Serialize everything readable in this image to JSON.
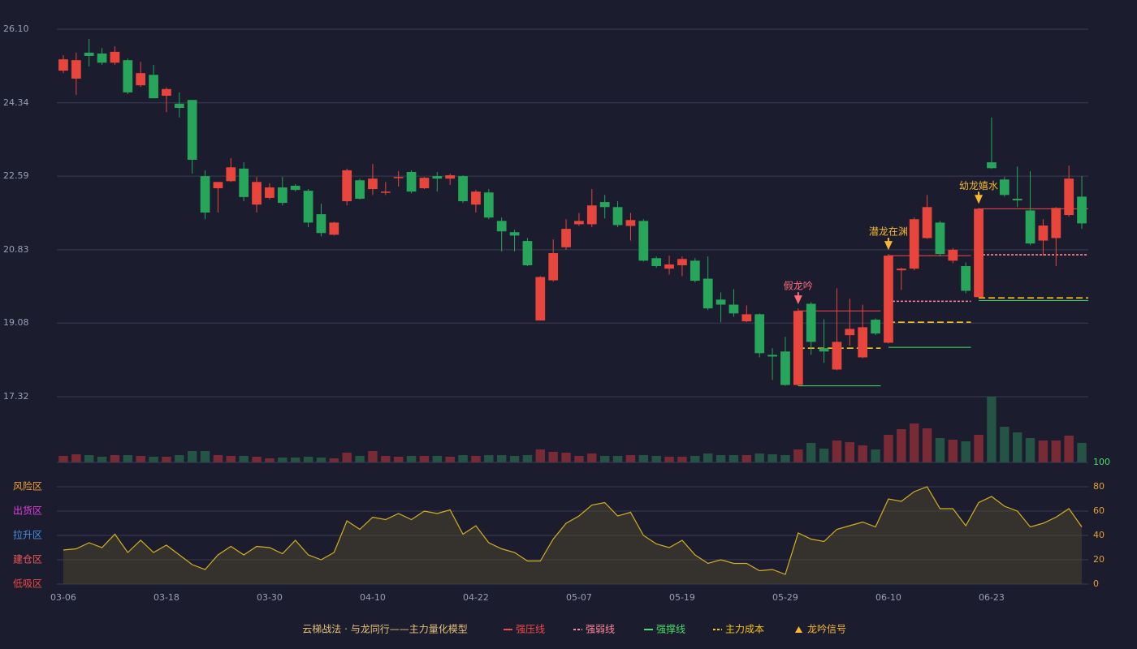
{
  "chart_data": {
    "type": "candlestick",
    "categories": [
      "03-06",
      null,
      null,
      null,
      null,
      null,
      null,
      null,
      "03-18",
      null,
      null,
      null,
      null,
      null,
      null,
      null,
      "03-30",
      null,
      null,
      null,
      null,
      null,
      null,
      null,
      "04-10",
      null,
      null,
      null,
      null,
      null,
      null,
      null,
      "04-22",
      null,
      null,
      null,
      null,
      null,
      null,
      null,
      "05-07",
      null,
      null,
      null,
      null,
      null,
      null,
      null,
      "05-19",
      null,
      null,
      null,
      null,
      null,
      null,
      null,
      "05-29",
      null,
      null,
      null,
      null,
      null,
      null,
      null,
      "06-10",
      null,
      null,
      null,
      null,
      null,
      null,
      null,
      "06-23",
      null,
      null,
      null,
      null,
      null,
      null,
      null
    ],
    "open": [
      25.11,
      24.92,
      25.54,
      25.52,
      25.3,
      25.36,
      24.76,
      25.01,
      24.51,
      24.32,
      24.41,
      22.59,
      22.3,
      22.47,
      22.77,
      21.91,
      22.07,
      22.32,
      22.36,
      22.24,
      21.68,
      21.19,
      21.99,
      22.49,
      22.28,
      22.2,
      22.55,
      22.69,
      22.3,
      22.59,
      22.53,
      22.59,
      21.91,
      22.2,
      21.52,
      21.25,
      21.04,
      19.14,
      20.1,
      20.89,
      21.44,
      21.44,
      21.97,
      21.85,
      21.4,
      21.52,
      20.63,
      20.38,
      20.46,
      20.57,
      20.14,
      19.64,
      19.52,
      19.12,
      19.29,
      18.32,
      18.4,
      17.6,
      19.54,
      18.48,
      17.97,
      18.79,
      18.26,
      19.16,
      18.61,
      20.34,
      20.38,
      21.11,
      21.48,
      20.57,
      20.44,
      19.7,
      22.92,
      22.51,
      22.05,
      21.77,
      21.05,
      21.11,
      21.66,
      22.1
    ],
    "high": [
      25.48,
      25.54,
      25.87,
      25.65,
      25.69,
      25.4,
      25.32,
      25.25,
      24.71,
      24.59,
      24.41,
      22.73,
      22.45,
      23.02,
      22.92,
      22.57,
      22.42,
      22.57,
      22.4,
      22.28,
      21.93,
      21.5,
      22.77,
      22.53,
      22.88,
      22.45,
      22.71,
      22.73,
      22.57,
      22.69,
      22.65,
      22.61,
      22.26,
      22.28,
      21.6,
      21.31,
      21.11,
      20.2,
      21.08,
      21.56,
      21.71,
      22.28,
      22.14,
      21.99,
      21.71,
      21.56,
      20.67,
      20.69,
      20.67,
      20.63,
      20.67,
      19.81,
      19.89,
      19.5,
      19.31,
      18.48,
      18.75,
      19.43,
      19.58,
      19.17,
      19.91,
      19.66,
      19.52,
      19.19,
      20.73,
      20.4,
      21.6,
      22.14,
      21.52,
      20.87,
      20.53,
      21.83,
      23.99,
      22.57,
      22.82,
      22.71,
      21.56,
      21.85,
      22.84,
      22.59
    ],
    "low": [
      25.05,
      24.53,
      25.21,
      25.25,
      25.25,
      24.55,
      24.72,
      24.45,
      24.12,
      23.99,
      22.65,
      21.56,
      21.72,
      22.45,
      21.99,
      21.72,
      22.03,
      21.89,
      22.22,
      21.37,
      21.15,
      21.17,
      21.89,
      22.03,
      22.14,
      22.14,
      22.34,
      22.18,
      22.28,
      22.22,
      22.38,
      21.95,
      21.72,
      21.56,
      20.79,
      20.79,
      20.44,
      19.14,
      20.07,
      20.83,
      21.4,
      21.37,
      21.58,
      21.37,
      21.05,
      20.55,
      20.4,
      20.24,
      20.2,
      20.05,
      19.39,
      19.1,
      19.23,
      19.1,
      18.26,
      17.72,
      17.58,
      17.58,
      18.32,
      18.13,
      17.95,
      18.54,
      18.24,
      18.79,
      18.59,
      19.87,
      20.34,
      21.09,
      20.67,
      20.51,
      19.79,
      19.68,
      22.76,
      22.1,
      21.85,
      20.94,
      20.69,
      20.44,
      21.62,
      21.33
    ],
    "close": [
      25.38,
      25.36,
      25.46,
      25.3,
      25.56,
      24.59,
      25.05,
      24.45,
      24.67,
      24.22,
      22.98,
      21.72,
      22.45,
      22.8,
      22.09,
      22.45,
      22.32,
      21.95,
      22.26,
      21.48,
      21.23,
      21.48,
      22.73,
      22.05,
      22.53,
      22.22,
      22.57,
      22.22,
      22.55,
      22.53,
      22.61,
      21.99,
      22.22,
      21.6,
      21.27,
      21.17,
      20.46,
      20.18,
      20.75,
      21.33,
      21.52,
      21.89,
      21.85,
      21.42,
      21.54,
      20.57,
      20.44,
      20.48,
      20.61,
      20.09,
      19.43,
      19.52,
      19.31,
      19.29,
      18.36,
      18.28,
      17.6,
      19.37,
      18.63,
      18.4,
      18.63,
      18.94,
      18.98,
      18.83,
      20.69,
      20.38,
      21.56,
      21.85,
      20.73,
      20.83,
      19.85,
      21.81,
      22.78,
      22.14,
      22.01,
      20.98,
      21.41,
      21.83,
      22.53,
      21.46
    ],
    "up_color": "#e8463c",
    "down_color": "#27a55a",
    "ylim": [
      17.32,
      26.1
    ],
    "yticks": [
      17.32,
      19.08,
      20.83,
      22.59,
      24.34,
      {
        "value": 26.1,
        "label": "26.10"
      }
    ],
    "grid": true,
    "volume": [
      8,
      10,
      9,
      7,
      9,
      9,
      8,
      7,
      7,
      9,
      14,
      14,
      9,
      8,
      8,
      7,
      5,
      6,
      6,
      7,
      6,
      5,
      12,
      8,
      14,
      8,
      7,
      8,
      8,
      8,
      7,
      9,
      8,
      9,
      9,
      8,
      9,
      16,
      13,
      12,
      8,
      11,
      8,
      8,
      9,
      9,
      8,
      7,
      7,
      8,
      11,
      9,
      9,
      9,
      11,
      10,
      9,
      16,
      24,
      17,
      27,
      25,
      21,
      16,
      34,
      41,
      48,
      42,
      30,
      28,
      26,
      34,
      81,
      44,
      37,
      30,
      27,
      27,
      33,
      24
    ],
    "volume_lim": [
      0,
      81
    ],
    "lines": [
      {
        "name": "强压线",
        "color": "#f04a4a",
        "dash": false,
        "segments": [
          {
            "from": 57,
            "to": 63,
            "value": 19.37
          },
          {
            "from": 64,
            "to": 70,
            "value": 20.69
          },
          {
            "from": 71,
            "to": 79,
            "value": 21.81
          }
        ]
      },
      {
        "name": "强弱线",
        "color": "#ff8a9a",
        "dash": true,
        "segments": [
          {
            "from": 64,
            "to": 70,
            "value": 19.6
          },
          {
            "from": 71,
            "to": 79,
            "value": 20.71
          }
        ]
      },
      {
        "name": "强撑线",
        "color": "#4ade6a",
        "dash": false,
        "segments": [
          {
            "from": 57,
            "to": 63,
            "value": 17.58
          },
          {
            "from": 64,
            "to": 70,
            "value": 18.5
          },
          {
            "from": 71,
            "to": 79,
            "value": 19.62
          }
        ]
      },
      {
        "name": "主力成本",
        "color": "#f5c518",
        "dash": true,
        "segments": [
          {
            "from": 57,
            "to": 63,
            "value": 18.48
          },
          {
            "from": 64,
            "to": 70,
            "value": 19.1
          },
          {
            "from": 71,
            "to": 79,
            "value": 19.68
          }
        ]
      }
    ],
    "signals": {
      "name": "龙吟信号",
      "color": "#f5b830",
      "items": [
        {
          "index": 57,
          "label": "假龙吟",
          "color": "#ff6b7a"
        },
        {
          "index": 64,
          "label": "潜龙在渊"
        },
        {
          "index": 71,
          "label": "幼龙嬉水"
        }
      ]
    },
    "indicator": {
      "values": [
        28,
        29,
        34,
        30,
        41,
        26,
        36,
        26,
        32,
        24,
        16,
        12,
        24,
        31,
        24,
        31,
        30,
        25,
        36,
        24,
        20,
        26,
        52,
        45,
        55,
        53,
        58,
        53,
        60,
        58,
        61,
        41,
        48,
        34,
        29,
        26,
        19,
        19,
        37,
        50,
        56,
        65,
        67,
        56,
        59,
        40,
        33,
        30,
        36,
        24,
        17,
        20,
        17,
        17,
        11,
        12,
        8,
        42,
        37,
        35,
        45,
        48,
        51,
        47,
        70,
        68,
        76,
        80,
        62,
        62,
        48,
        67,
        72,
        64,
        60,
        47,
        50,
        55,
        62,
        47
      ],
      "color": "#d4b020",
      "ylim": [
        0,
        100
      ],
      "yticks": [
        0,
        20,
        40,
        60,
        80,
        100
      ],
      "tick_color": "#e8a030",
      "top_tick_color": "#4ade6a",
      "zones": [
        {
          "label": "风险区",
          "value": 80,
          "color": "#f0a030"
        },
        {
          "label": "出货区",
          "value": 60,
          "color": "#e040e0"
        },
        {
          "label": "拉升区",
          "value": 40,
          "color": "#4a90e2"
        },
        {
          "label": "建仓区",
          "value": 20,
          "color": "#f05a5a"
        },
        {
          "label": "低吸区",
          "value": 0,
          "color": "#f04848"
        }
      ]
    },
    "legend_title": "云梯战法 · 与龙同行——主力量化模型"
  }
}
